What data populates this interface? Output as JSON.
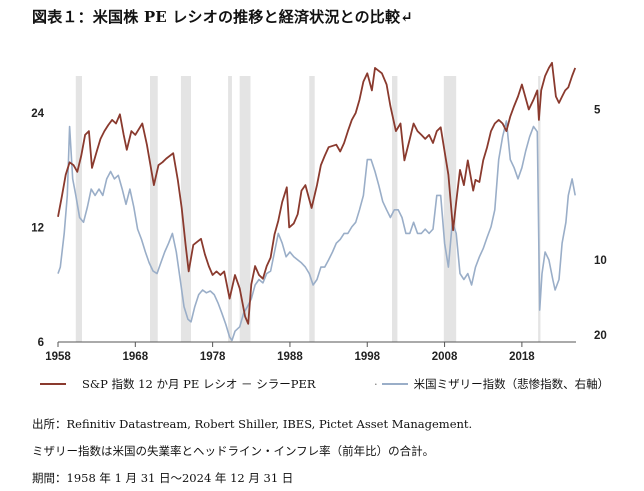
{
  "title": "図表１：米国株 PE レシオの推移と経済状況との比較↵",
  "legend": {
    "series1_label": "S&P 指数 12 か月 PE レシオ － シラーPER",
    "series2_label": "米国ミザリー指数（悲惨指数、右軸）",
    "series2_marker": "·"
  },
  "notes": {
    "source": "出所：Refinitiv Datastream, Robert Shiller, IBES, Pictet Asset Management.",
    "misery": "ミザリー指数は米国の失業率とヘッドライン・インフレ率（前年比）の合計。",
    "period": "期間：1958 年 1 月 31 日～2024 年 12 月 31 日"
  },
  "colors": {
    "pe": "#8a3a2e",
    "misery": "#9aaec8",
    "recession": "#e4e4e4"
  },
  "chart_data": {
    "type": "line",
    "x_range": [
      1958,
      2025
    ],
    "x_ticks": [
      "1958",
      "1968",
      "1978",
      "1988",
      "1998",
      "2008",
      "2018"
    ],
    "left_axis": {
      "scale": "log",
      "ticks": [
        6,
        12,
        24
      ],
      "range": [
        6,
        30
      ]
    },
    "right_axis": {
      "scale": "reciprocal",
      "inverted": true,
      "ticks": [
        5,
        10,
        20
      ],
      "range": [
        4.5,
        22
      ]
    },
    "recessions": [
      [
        1960.3,
        1961.1
      ],
      [
        1969.9,
        1970.9
      ],
      [
        1973.9,
        1975.2
      ],
      [
        1980.0,
        1980.5
      ],
      [
        1981.5,
        1982.9
      ],
      [
        1990.5,
        1991.2
      ],
      [
        2001.2,
        2001.9
      ],
      [
        2007.9,
        2009.5
      ],
      [
        2020.1,
        2020.4
      ]
    ],
    "series": [
      {
        "name": "S&P 指数 12 か月 PE レシオ － シラーPER",
        "axis": "left",
        "points": [
          [
            1958.0,
            12.8
          ],
          [
            1958.5,
            14.5
          ],
          [
            1959.0,
            16.5
          ],
          [
            1959.5,
            17.8
          ],
          [
            1960.0,
            17.5
          ],
          [
            1960.5,
            16.8
          ],
          [
            1961.0,
            18.5
          ],
          [
            1961.5,
            21.0
          ],
          [
            1962.0,
            21.5
          ],
          [
            1962.4,
            17.2
          ],
          [
            1963.0,
            19.0
          ],
          [
            1963.5,
            20.5
          ],
          [
            1964.0,
            21.5
          ],
          [
            1964.5,
            22.3
          ],
          [
            1965.0,
            23.0
          ],
          [
            1965.5,
            22.5
          ],
          [
            1966.0,
            23.8
          ],
          [
            1966.5,
            21.0
          ],
          [
            1966.9,
            19.2
          ],
          [
            1967.5,
            21.5
          ],
          [
            1968.0,
            21.0
          ],
          [
            1968.9,
            22.5
          ],
          [
            1969.5,
            19.8
          ],
          [
            1970.4,
            15.5
          ],
          [
            1971.0,
            17.5
          ],
          [
            1971.5,
            17.8
          ],
          [
            1972.0,
            18.2
          ],
          [
            1972.9,
            18.8
          ],
          [
            1973.5,
            16.0
          ],
          [
            1974.0,
            13.5
          ],
          [
            1974.5,
            10.8
          ],
          [
            1974.9,
            9.2
          ],
          [
            1975.5,
            10.8
          ],
          [
            1976.0,
            11.0
          ],
          [
            1976.5,
            11.2
          ],
          [
            1977.0,
            10.2
          ],
          [
            1977.5,
            9.5
          ],
          [
            1978.0,
            9.0
          ],
          [
            1978.5,
            9.2
          ],
          [
            1979.0,
            9.0
          ],
          [
            1979.5,
            9.2
          ],
          [
            1980.2,
            7.8
          ],
          [
            1980.9,
            9.0
          ],
          [
            1981.5,
            8.3
          ],
          [
            1982.2,
            7.0
          ],
          [
            1982.6,
            6.7
          ],
          [
            1983.0,
            8.5
          ],
          [
            1983.5,
            9.5
          ],
          [
            1984.0,
            9.0
          ],
          [
            1984.5,
            8.8
          ],
          [
            1985.0,
            9.5
          ],
          [
            1985.5,
            10.0
          ],
          [
            1986.0,
            11.5
          ],
          [
            1986.5,
            12.5
          ],
          [
            1987.0,
            14.0
          ],
          [
            1987.6,
            15.3
          ],
          [
            1987.9,
            12.0
          ],
          [
            1988.5,
            12.3
          ],
          [
            1989.0,
            13.0
          ],
          [
            1989.5,
            15.0
          ],
          [
            1990.0,
            15.5
          ],
          [
            1990.8,
            13.5
          ],
          [
            1991.5,
            15.5
          ],
          [
            1992.0,
            17.5
          ],
          [
            1992.5,
            18.5
          ],
          [
            1993.0,
            19.5
          ],
          [
            1994.0,
            19.8
          ],
          [
            1994.5,
            19.0
          ],
          [
            1995.0,
            20.0
          ],
          [
            1995.5,
            21.5
          ],
          [
            1996.0,
            23.0
          ],
          [
            1996.5,
            24.0
          ],
          [
            1997.0,
            26.0
          ],
          [
            1997.5,
            29.0
          ],
          [
            1998.0,
            30.5
          ],
          [
            1998.6,
            27.5
          ],
          [
            1999.0,
            31.5
          ],
          [
            1999.9,
            30.5
          ],
          [
            2000.5,
            28.5
          ],
          [
            2001.0,
            25.0
          ],
          [
            2001.7,
            21.5
          ],
          [
            2002.3,
            22.5
          ],
          [
            2002.8,
            18.0
          ],
          [
            2003.5,
            20.5
          ],
          [
            2004.0,
            22.5
          ],
          [
            2004.5,
            21.5
          ],
          [
            2005.0,
            21.0
          ],
          [
            2005.5,
            20.5
          ],
          [
            2006.0,
            21.0
          ],
          [
            2006.5,
            20.0
          ],
          [
            2007.0,
            21.5
          ],
          [
            2007.5,
            22.0
          ],
          [
            2008.0,
            19.0
          ],
          [
            2008.5,
            16.5
          ],
          [
            2009.1,
            11.8
          ],
          [
            2009.5,
            14.0
          ],
          [
            2010.0,
            17.0
          ],
          [
            2010.5,
            15.5
          ],
          [
            2011.0,
            18.0
          ],
          [
            2011.7,
            15.0
          ],
          [
            2012.0,
            16.0
          ],
          [
            2012.5,
            15.8
          ],
          [
            2013.0,
            18.0
          ],
          [
            2013.5,
            19.5
          ],
          [
            2014.0,
            21.5
          ],
          [
            2014.5,
            22.5
          ],
          [
            2015.0,
            23.0
          ],
          [
            2015.5,
            22.5
          ],
          [
            2016.0,
            21.5
          ],
          [
            2016.5,
            23.5
          ],
          [
            2017.0,
            25.0
          ],
          [
            2017.5,
            26.5
          ],
          [
            2018.0,
            28.5
          ],
          [
            2018.9,
            24.5
          ],
          [
            2019.5,
            26.0
          ],
          [
            2020.0,
            27.5
          ],
          [
            2020.2,
            23.0
          ],
          [
            2020.5,
            27.5
          ],
          [
            2021.0,
            30.0
          ],
          [
            2021.5,
            31.5
          ],
          [
            2021.9,
            32.5
          ],
          [
            2022.4,
            26.5
          ],
          [
            2022.8,
            25.5
          ],
          [
            2023.2,
            26.5
          ],
          [
            2023.6,
            27.5
          ],
          [
            2024.0,
            28.0
          ],
          [
            2024.5,
            30.0
          ],
          [
            2024.9,
            31.5
          ]
        ]
      },
      {
        "name": "米国ミザリー指数（悲惨指数、右軸）",
        "axis": "right",
        "points": [
          [
            1958.0,
            11.0
          ],
          [
            1958.3,
            10.5
          ],
          [
            1958.8,
            8.5
          ],
          [
            1959.2,
            7.0
          ],
          [
            1959.5,
            5.3
          ],
          [
            1959.9,
            6.5
          ],
          [
            1960.3,
            7.0
          ],
          [
            1960.8,
            7.8
          ],
          [
            1961.3,
            8.0
          ],
          [
            1961.8,
            7.4
          ],
          [
            1962.3,
            6.8
          ],
          [
            1962.8,
            7.0
          ],
          [
            1963.3,
            6.8
          ],
          [
            1963.8,
            7.0
          ],
          [
            1964.3,
            6.5
          ],
          [
            1964.8,
            6.3
          ],
          [
            1965.3,
            6.5
          ],
          [
            1965.8,
            6.4
          ],
          [
            1966.3,
            6.8
          ],
          [
            1966.8,
            7.3
          ],
          [
            1967.3,
            6.8
          ],
          [
            1967.8,
            7.4
          ],
          [
            1968.3,
            8.3
          ],
          [
            1968.8,
            8.8
          ],
          [
            1969.3,
            9.5
          ],
          [
            1969.8,
            10.2
          ],
          [
            1970.3,
            10.8
          ],
          [
            1970.8,
            11.0
          ],
          [
            1971.3,
            10.2
          ],
          [
            1971.8,
            9.5
          ],
          [
            1972.3,
            9.0
          ],
          [
            1972.8,
            8.5
          ],
          [
            1973.3,
            9.5
          ],
          [
            1973.8,
            11.5
          ],
          [
            1974.3,
            14.5
          ],
          [
            1974.8,
            16.5
          ],
          [
            1975.2,
            17.0
          ],
          [
            1975.7,
            14.5
          ],
          [
            1976.2,
            13.0
          ],
          [
            1976.7,
            12.5
          ],
          [
            1977.2,
            12.8
          ],
          [
            1977.7,
            12.6
          ],
          [
            1978.2,
            13.0
          ],
          [
            1978.7,
            14.0
          ],
          [
            1979.2,
            15.5
          ],
          [
            1979.7,
            17.5
          ],
          [
            1980.2,
            20.5
          ],
          [
            1980.5,
            21.5
          ],
          [
            1980.9,
            19.0
          ],
          [
            1981.5,
            18.0
          ],
          [
            1982.0,
            15.5
          ],
          [
            1982.5,
            14.5
          ],
          [
            1983.0,
            13.5
          ],
          [
            1983.5,
            12.0
          ],
          [
            1984.0,
            11.5
          ],
          [
            1984.5,
            11.8
          ],
          [
            1985.0,
            11.0
          ],
          [
            1985.5,
            10.8
          ],
          [
            1986.0,
            9.5
          ],
          [
            1986.5,
            8.5
          ],
          [
            1987.0,
            9.0
          ],
          [
            1987.5,
            9.8
          ],
          [
            1988.0,
            9.5
          ],
          [
            1988.5,
            9.8
          ],
          [
            1989.0,
            10.0
          ],
          [
            1989.5,
            10.2
          ],
          [
            1990.0,
            10.5
          ],
          [
            1990.5,
            11.0
          ],
          [
            1991.0,
            12.0
          ],
          [
            1991.5,
            11.5
          ],
          [
            1992.0,
            10.5
          ],
          [
            1992.5,
            10.5
          ],
          [
            1993.0,
            10.0
          ],
          [
            1993.5,
            9.5
          ],
          [
            1994.0,
            9.0
          ],
          [
            1994.5,
            8.8
          ],
          [
            1995.0,
            8.5
          ],
          [
            1995.5,
            8.5
          ],
          [
            1996.0,
            8.2
          ],
          [
            1996.5,
            8.0
          ],
          [
            1997.0,
            7.5
          ],
          [
            1997.5,
            7.0
          ],
          [
            1998.0,
            6.0
          ],
          [
            1998.5,
            6.0
          ],
          [
            1999.0,
            6.3
          ],
          [
            1999.5,
            6.7
          ],
          [
            2000.0,
            7.2
          ],
          [
            2000.5,
            7.5
          ],
          [
            2001.0,
            7.8
          ],
          [
            2001.5,
            7.5
          ],
          [
            2002.0,
            7.5
          ],
          [
            2002.5,
            7.8
          ],
          [
            2003.0,
            8.5
          ],
          [
            2003.5,
            8.5
          ],
          [
            2004.0,
            8.0
          ],
          [
            2004.5,
            8.5
          ],
          [
            2005.0,
            8.5
          ],
          [
            2005.5,
            8.3
          ],
          [
            2006.0,
            8.5
          ],
          [
            2006.5,
            8.3
          ],
          [
            2007.0,
            7.0
          ],
          [
            2007.5,
            7.0
          ],
          [
            2008.0,
            9.0
          ],
          [
            2008.5,
            10.5
          ],
          [
            2009.0,
            8.0
          ],
          [
            2009.5,
            8.5
          ],
          [
            2010.0,
            11.0
          ],
          [
            2010.5,
            11.5
          ],
          [
            2011.0,
            11.0
          ],
          [
            2011.5,
            12.0
          ],
          [
            2012.0,
            10.5
          ],
          [
            2012.5,
            9.8
          ],
          [
            2013.0,
            9.3
          ],
          [
            2013.5,
            8.7
          ],
          [
            2014.0,
            8.2
          ],
          [
            2014.5,
            7.5
          ],
          [
            2015.0,
            6.0
          ],
          [
            2015.5,
            5.5
          ],
          [
            2016.0,
            5.2
          ],
          [
            2016.5,
            6.0
          ],
          [
            2017.0,
            6.2
          ],
          [
            2017.5,
            6.5
          ],
          [
            2018.0,
            6.2
          ],
          [
            2018.5,
            5.8
          ],
          [
            2019.0,
            5.5
          ],
          [
            2019.5,
            5.3
          ],
          [
            2020.0,
            5.4
          ],
          [
            2020.3,
            15.0
          ],
          [
            2020.6,
            11.0
          ],
          [
            2021.0,
            9.5
          ],
          [
            2021.5,
            10.0
          ],
          [
            2022.0,
            11.5
          ],
          [
            2022.3,
            12.5
          ],
          [
            2022.8,
            11.5
          ],
          [
            2023.2,
            9.0
          ],
          [
            2023.7,
            8.0
          ],
          [
            2024.0,
            7.0
          ],
          [
            2024.5,
            6.5
          ],
          [
            2024.9,
            7.0
          ]
        ]
      }
    ]
  }
}
